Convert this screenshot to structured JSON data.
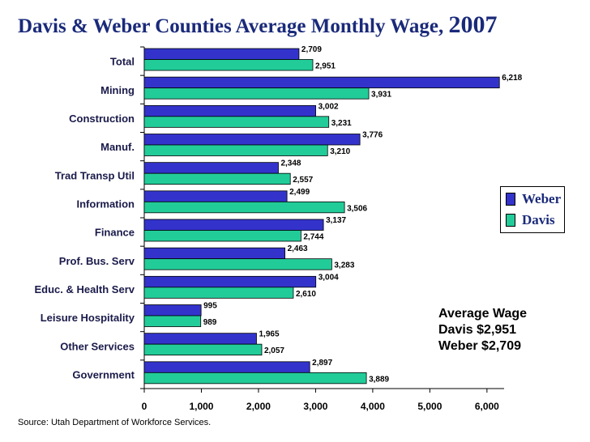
{
  "chart_data": {
    "type": "bar",
    "orientation": "horizontal",
    "title": "Davis & Weber Counties Average Monthly Wage,",
    "title_year": "2007",
    "xlabel": "",
    "ylabel": "",
    "xlim": [
      0,
      6300
    ],
    "xticks": [
      0,
      1000,
      2000,
      3000,
      4000,
      5000,
      6000
    ],
    "xtick_labels": [
      "0",
      "1,000",
      "2,000",
      "3,000",
      "4,000",
      "5,000",
      "6,000"
    ],
    "categories": [
      "Total",
      "Mining",
      "Construction",
      "Manuf.",
      "Trad Transp Util",
      "Information",
      "Finance",
      "Prof. Bus. Serv",
      "Educ. & Health Serv",
      "Leisure Hospitality",
      "Other Services",
      "Government"
    ],
    "series": [
      {
        "name": "Weber",
        "color": "#3333cc",
        "values": [
          2709,
          6218,
          3002,
          3776,
          2348,
          2499,
          3137,
          2463,
          3004,
          995,
          1965,
          2897
        ],
        "labels": [
          "2,709",
          "6,218",
          "3,002",
          "3,776",
          "2,348",
          "2,499",
          "3,137",
          "2,463",
          "3,004",
          "995",
          "1,965",
          "2,897"
        ]
      },
      {
        "name": "Davis",
        "color": "#22cc99",
        "values": [
          2951,
          3931,
          3231,
          3210,
          2557,
          3506,
          2744,
          3283,
          2610,
          989,
          2057,
          3889
        ],
        "labels": [
          "2,951",
          "3,931",
          "3,231",
          "3,210",
          "2,557",
          "3,506",
          "2,744",
          "3,283",
          "2,610",
          "989",
          "2,057",
          "3,889"
        ]
      }
    ],
    "legend_position": "right",
    "annotations": [
      "Average Wage",
      "Davis $2,951",
      "Weber $2,709"
    ]
  },
  "legend": {
    "weber": "Weber",
    "davis": "Davis"
  },
  "source": "Source: Utah Department of Workforce Services."
}
